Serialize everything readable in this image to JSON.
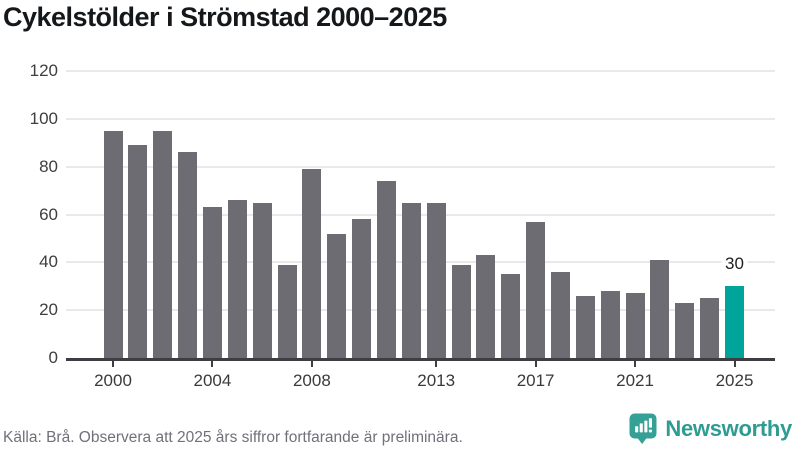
{
  "title": "Cykelstölder i Strömstad 2000–2025",
  "footer": {
    "source": "Källa: Brå. Observera att 2025 års siffror fortfarande är preliminära."
  },
  "brand": {
    "name": "Newsworthy"
  },
  "chart_data": {
    "type": "bar",
    "title": "Cykelstölder i Strömstad 2000–2025",
    "xlabel": "",
    "ylabel": "",
    "categories": [
      2000,
      2001,
      2002,
      2003,
      2004,
      2005,
      2006,
      2007,
      2008,
      2009,
      2010,
      2011,
      2012,
      2013,
      2014,
      2015,
      2016,
      2017,
      2018,
      2019,
      2020,
      2021,
      2022,
      2023,
      2024,
      2025
    ],
    "values": [
      95,
      89,
      95,
      86,
      63,
      66,
      65,
      39,
      79,
      52,
      58,
      74,
      65,
      65,
      39,
      43,
      35,
      57,
      36,
      26,
      28,
      27,
      41,
      23,
      25,
      30
    ],
    "highlight_index": 25,
    "value_labels": [
      {
        "index": 25,
        "text": "30"
      }
    ],
    "y_ticks": [
      0,
      20,
      40,
      60,
      80,
      100,
      120
    ],
    "ylim": [
      0,
      120
    ],
    "x_tick_labels": [
      "2000",
      "2004",
      "2008",
      "2013",
      "2017",
      "2021",
      "2025"
    ],
    "x_tick_indices": [
      0,
      4,
      8,
      13,
      17,
      21,
      25
    ],
    "grid": true,
    "legend": false,
    "colors": {
      "bar": "#6d6c72",
      "highlight": "#00a49a",
      "grid": "#e9e9e9",
      "axis": "#3d3d42",
      "brand": "#2e9c93",
      "brand_icon": "#35a096"
    }
  }
}
